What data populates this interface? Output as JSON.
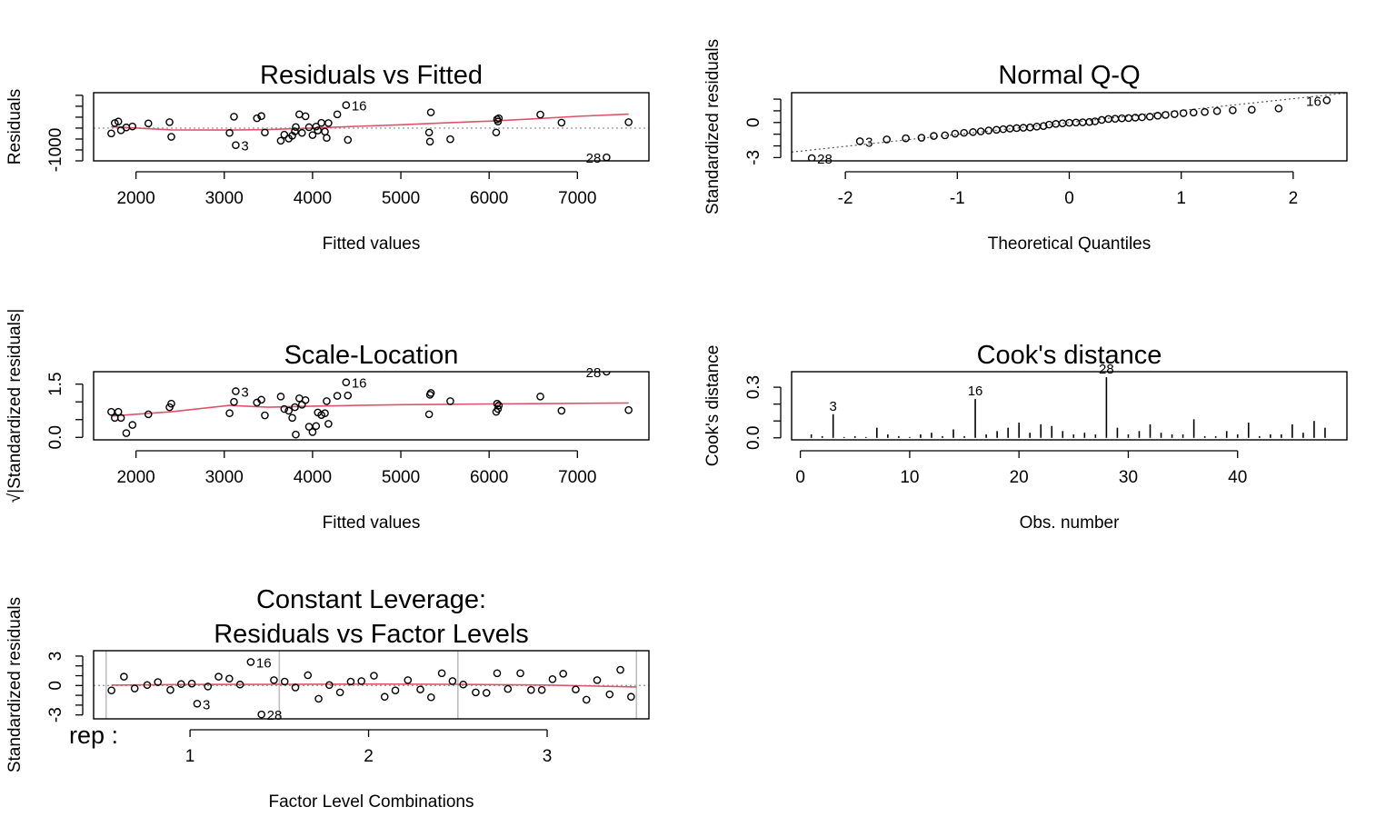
{
  "colors": {
    "frame": "#000000",
    "smooth": "#DF536B",
    "reference": "#9E9E9E",
    "lines": "#000000"
  },
  "chart_data": [
    {
      "type": "scatter",
      "title": "Residuals vs Fitted",
      "xlabel": "Fitted values",
      "ylabel": "Residuals",
      "xlim": [
        1520,
        7810
      ],
      "ylim": [
        -1500,
        1620
      ],
      "xticks": [
        2000,
        3000,
        4000,
        5000,
        6000,
        7000
      ],
      "yticks": [
        -1000
      ],
      "yminor": [
        -1500,
        -1000,
        -500,
        0,
        500,
        1000,
        1500
      ],
      "reference": {
        "kind": "hline",
        "y": 0,
        "style": "dotted"
      },
      "points": [
        [
          1720,
          -245
        ],
        [
          1760,
          230
        ],
        [
          1800,
          300
        ],
        [
          1830,
          -100
        ],
        [
          1890,
          30
        ],
        [
          1960,
          75
        ],
        [
          2140,
          215
        ],
        [
          2380,
          270
        ],
        [
          2400,
          -400
        ],
        [
          3060,
          -220
        ],
        [
          3110,
          520
        ],
        [
          3130,
          -780
        ],
        [
          3370,
          450
        ],
        [
          3420,
          550
        ],
        [
          3460,
          -200
        ],
        [
          3640,
          -580
        ],
        [
          3680,
          -300
        ],
        [
          3730,
          -480
        ],
        [
          3770,
          -350
        ],
        [
          3800,
          -150
        ],
        [
          3810,
          50
        ],
        [
          3850,
          630
        ],
        [
          3880,
          -220
        ],
        [
          3920,
          540
        ],
        [
          3960,
          40
        ],
        [
          4000,
          -320
        ],
        [
          4040,
          70
        ],
        [
          4060,
          -110
        ],
        [
          4100,
          240
        ],
        [
          4140,
          -160
        ],
        [
          4160,
          -450
        ],
        [
          4180,
          230
        ],
        [
          4280,
          630
        ],
        [
          4380,
          1050
        ],
        [
          4400,
          -540
        ],
        [
          5320,
          -200
        ],
        [
          5330,
          -620
        ],
        [
          5340,
          720
        ],
        [
          5560,
          -510
        ],
        [
          6080,
          -200
        ],
        [
          6090,
          400
        ],
        [
          6100,
          300
        ],
        [
          6110,
          450
        ],
        [
          6580,
          620
        ],
        [
          6820,
          250
        ],
        [
          7330,
          -1340
        ],
        [
          7580,
          270
        ]
      ],
      "labeled": [
        {
          "label": "16",
          "x": 4380,
          "y": 1050
        },
        {
          "label": "3",
          "x": 3130,
          "y": -780
        },
        {
          "label": "28",
          "x": 7330,
          "y": -1340
        }
      ],
      "smooth": [
        [
          1720,
          60
        ],
        [
          2400,
          -80
        ],
        [
          3060,
          -90
        ],
        [
          3500,
          -70
        ],
        [
          4000,
          0
        ],
        [
          4500,
          80
        ],
        [
          5000,
          150
        ],
        [
          5500,
          240
        ],
        [
          6000,
          320
        ],
        [
          6500,
          420
        ],
        [
          7000,
          540
        ],
        [
          7580,
          640
        ]
      ]
    },
    {
      "type": "scatter",
      "title": "Normal Q-Q",
      "xlabel": "Theoretical Quantiles",
      "ylabel": "Standardized residuals",
      "xlim": [
        -2.48,
        2.48
      ],
      "ylim": [
        -3.28,
        2.55
      ],
      "xticks": [
        -2,
        -1,
        0,
        1,
        2
      ],
      "yticks": [
        -3,
        0
      ],
      "yminor": [
        -3,
        -2,
        -1,
        0,
        1,
        2
      ],
      "reference": {
        "kind": "line",
        "intercept": 0,
        "slope": 1.02,
        "style": "dotted"
      },
      "points": [
        [
          -2.3,
          -3.05
        ],
        [
          -1.87,
          -1.6
        ],
        [
          -1.63,
          -1.45
        ],
        [
          -1.46,
          -1.35
        ],
        [
          -1.32,
          -1.3
        ],
        [
          -1.21,
          -1.15
        ],
        [
          -1.11,
          -1.1
        ],
        [
          -1.02,
          -0.95
        ],
        [
          -0.94,
          -0.88
        ],
        [
          -0.86,
          -0.82
        ],
        [
          -0.79,
          -0.76
        ],
        [
          -0.72,
          -0.68
        ],
        [
          -0.65,
          -0.62
        ],
        [
          -0.59,
          -0.57
        ],
        [
          -0.53,
          -0.52
        ],
        [
          -0.47,
          -0.48
        ],
        [
          -0.41,
          -0.45
        ],
        [
          -0.35,
          -0.42
        ],
        [
          -0.29,
          -0.35
        ],
        [
          -0.23,
          -0.3
        ],
        [
          -0.18,
          -0.18
        ],
        [
          -0.12,
          -0.12
        ],
        [
          -0.06,
          -0.07
        ],
        [
          0.0,
          -0.02
        ],
        [
          0.06,
          0.0
        ],
        [
          0.12,
          0.02
        ],
        [
          0.18,
          0.05
        ],
        [
          0.23,
          0.1
        ],
        [
          0.29,
          0.22
        ],
        [
          0.35,
          0.3
        ],
        [
          0.41,
          0.32
        ],
        [
          0.47,
          0.36
        ],
        [
          0.53,
          0.38
        ],
        [
          0.59,
          0.42
        ],
        [
          0.65,
          0.45
        ],
        [
          0.72,
          0.5
        ],
        [
          0.79,
          0.58
        ],
        [
          0.86,
          0.65
        ],
        [
          0.94,
          0.72
        ],
        [
          1.02,
          0.8
        ],
        [
          1.11,
          0.85
        ],
        [
          1.21,
          0.9
        ],
        [
          1.32,
          0.98
        ],
        [
          1.46,
          1.05
        ],
        [
          1.63,
          1.1
        ],
        [
          1.87,
          1.2
        ],
        [
          2.3,
          1.9
        ]
      ],
      "labeled": [
        {
          "label": "16",
          "x": 2.3,
          "y": 1.9
        },
        {
          "label": "3",
          "x": -1.87,
          "y": -1.6
        },
        {
          "label": "28",
          "x": -2.3,
          "y": -3.05
        }
      ]
    },
    {
      "type": "scatter",
      "title": "Scale-Location",
      "xlabel": "Fitted values",
      "ylabel": "√|Standardized residuals|",
      "xlim": [
        1520,
        7810
      ],
      "ylim": [
        -0.07,
        1.85
      ],
      "xticks": [
        2000,
        3000,
        4000,
        5000,
        6000,
        7000
      ],
      "yticks": [
        0.0,
        1.5
      ],
      "ytick_labels": [
        "0.0",
        "1.5"
      ],
      "yminor": [
        0.0,
        0.5,
        1.0,
        1.5
      ],
      "points": [
        [
          1720,
          0.72
        ],
        [
          1760,
          0.55
        ],
        [
          1800,
          0.72
        ],
        [
          1830,
          0.55
        ],
        [
          1890,
          0.12
        ],
        [
          1960,
          0.35
        ],
        [
          2140,
          0.65
        ],
        [
          2380,
          0.85
        ],
        [
          2400,
          0.95
        ],
        [
          3060,
          0.68
        ],
        [
          3110,
          1.0
        ],
        [
          3130,
          1.3
        ],
        [
          3370,
          0.98
        ],
        [
          3420,
          1.06
        ],
        [
          3460,
          0.62
        ],
        [
          3640,
          1.15
        ],
        [
          3680,
          0.8
        ],
        [
          3730,
          0.75
        ],
        [
          3770,
          0.55
        ],
        [
          3800,
          0.85
        ],
        [
          3810,
          0.08
        ],
        [
          3850,
          1.1
        ],
        [
          3880,
          0.92
        ],
        [
          3920,
          1.05
        ],
        [
          3960,
          0.3
        ],
        [
          4000,
          0.15
        ],
        [
          4040,
          0.32
        ],
        [
          4060,
          0.7
        ],
        [
          4100,
          0.63
        ],
        [
          4140,
          0.68
        ],
        [
          4160,
          1.02
        ],
        [
          4180,
          0.38
        ],
        [
          4280,
          1.17
        ],
        [
          4380,
          1.55
        ],
        [
          4400,
          1.18
        ],
        [
          5320,
          0.65
        ],
        [
          5330,
          1.2
        ],
        [
          5340,
          1.25
        ],
        [
          5560,
          1.02
        ],
        [
          6080,
          0.72
        ],
        [
          6090,
          0.95
        ],
        [
          6100,
          0.8
        ],
        [
          6110,
          0.9
        ],
        [
          6580,
          1.15
        ],
        [
          6820,
          0.75
        ],
        [
          7330,
          1.85
        ],
        [
          7580,
          0.77
        ]
      ],
      "labeled": [
        {
          "label": "16",
          "x": 4380,
          "y": 1.55
        },
        {
          "label": "3",
          "x": 3130,
          "y": 1.3
        },
        {
          "label": "28",
          "x": 7330,
          "y": 1.85
        }
      ],
      "smooth": [
        [
          1720,
          0.6
        ],
        [
          2400,
          0.72
        ],
        [
          3060,
          0.9
        ],
        [
          3500,
          0.85
        ],
        [
          4000,
          0.88
        ],
        [
          4500,
          0.9
        ],
        [
          5000,
          0.92
        ],
        [
          5500,
          0.93
        ],
        [
          6000,
          0.94
        ],
        [
          6500,
          0.95
        ],
        [
          7000,
          0.96
        ],
        [
          7580,
          0.97
        ]
      ]
    },
    {
      "type": "bar",
      "title": "Cook's distance",
      "xlabel": "Obs. number",
      "ylabel": "Cook's distance",
      "xlim": [
        -0.8,
        50.0
      ],
      "ylim": [
        -0.012,
        0.392
      ],
      "xticks": [
        0,
        10,
        20,
        30,
        40
      ],
      "yticks": [
        0.0,
        0.3
      ],
      "ytick_labels": [
        "0.0",
        "0.3"
      ],
      "yminor": [
        0.0,
        0.1,
        0.2,
        0.3
      ],
      "x": [
        1,
        2,
        3,
        4,
        5,
        6,
        7,
        8,
        9,
        10,
        11,
        12,
        13,
        14,
        15,
        16,
        17,
        18,
        19,
        20,
        21,
        22,
        23,
        24,
        25,
        26,
        27,
        28,
        29,
        30,
        31,
        32,
        33,
        34,
        35,
        36,
        37,
        38,
        39,
        40,
        41,
        42,
        43,
        44,
        45,
        46,
        47,
        48
      ],
      "values": [
        0.02,
        0.01,
        0.14,
        0.005,
        0.01,
        0.005,
        0.06,
        0.02,
        0.01,
        0.005,
        0.02,
        0.03,
        0.01,
        0.05,
        0.01,
        0.23,
        0.02,
        0.04,
        0.06,
        0.09,
        0.03,
        0.08,
        0.07,
        0.04,
        0.02,
        0.03,
        0.02,
        0.36,
        0.06,
        0.02,
        0.04,
        0.08,
        0.03,
        0.02,
        0.02,
        0.11,
        0.01,
        0.01,
        0.04,
        0.02,
        0.09,
        0.01,
        0.02,
        0.02,
        0.08,
        0.03,
        0.1,
        0.06
      ],
      "labeled": [
        {
          "label": "3",
          "x": 3,
          "y": 0.14
        },
        {
          "label": "16",
          "x": 16,
          "y": 0.23
        },
        {
          "label": "28",
          "x": 28,
          "y": 0.36
        }
      ]
    },
    {
      "type": "scatter",
      "title": [
        "Constant Leverage:",
        "Residuals vs Factor Levels"
      ],
      "xlabel": "Factor Level Combinations",
      "ylabel": "Standardized residuals",
      "corner_label": "rep :",
      "xlim": [
        0.46,
        3.57
      ],
      "ylim": [
        -3.4,
        3.55
      ],
      "xticks": [
        1,
        2,
        3
      ],
      "yticks": [
        -3,
        0,
        3
      ],
      "yminor": [
        -3,
        -2,
        -1,
        0,
        1,
        2,
        3
      ],
      "separators": [
        0.53,
        1.5,
        2.5,
        3.5
      ],
      "reference": {
        "kind": "hline",
        "y": 0,
        "style": "dotted"
      },
      "points": [
        [
          0.56,
          -0.5
        ],
        [
          0.63,
          0.9
        ],
        [
          0.69,
          -0.3
        ],
        [
          0.76,
          0.05
        ],
        [
          0.82,
          0.35
        ],
        [
          0.89,
          -0.45
        ],
        [
          0.95,
          0.15
        ],
        [
          1.01,
          0.2
        ],
        [
          1.04,
          -1.85
        ],
        [
          1.1,
          -0.1
        ],
        [
          1.16,
          0.9
        ],
        [
          1.22,
          0.7
        ],
        [
          1.28,
          0.1
        ],
        [
          1.34,
          2.4
        ],
        [
          1.4,
          -2.95
        ],
        [
          1.47,
          0.55
        ],
        [
          1.53,
          0.4
        ],
        [
          1.59,
          -0.2
        ],
        [
          1.66,
          1.05
        ],
        [
          1.72,
          -1.35
        ],
        [
          1.78,
          0.05
        ],
        [
          1.84,
          -0.7
        ],
        [
          1.9,
          0.4
        ],
        [
          1.96,
          0.45
        ],
        [
          2.03,
          1.0
        ],
        [
          2.09,
          -1.15
        ],
        [
          2.15,
          -0.5
        ],
        [
          2.22,
          0.55
        ],
        [
          2.29,
          -0.4
        ],
        [
          2.35,
          -1.2
        ],
        [
          2.41,
          1.25
        ],
        [
          2.47,
          0.45
        ],
        [
          2.53,
          0.1
        ],
        [
          2.6,
          -0.7
        ],
        [
          2.66,
          -0.75
        ],
        [
          2.72,
          1.25
        ],
        [
          2.78,
          -0.35
        ],
        [
          2.85,
          1.25
        ],
        [
          2.91,
          -0.45
        ],
        [
          2.97,
          -0.45
        ],
        [
          3.03,
          0.65
        ],
        [
          3.09,
          1.2
        ],
        [
          3.16,
          -0.4
        ],
        [
          3.22,
          -1.45
        ],
        [
          3.28,
          0.55
        ],
        [
          3.35,
          -0.9
        ],
        [
          3.41,
          1.6
        ],
        [
          3.47,
          -1.15
        ]
      ],
      "labeled": [
        {
          "label": "16",
          "x": 1.34,
          "y": 2.4
        },
        {
          "label": "3",
          "x": 1.04,
          "y": -1.85
        },
        {
          "label": "28",
          "x": 1.4,
          "y": -2.95
        }
      ],
      "smooth": [
        [
          0.56,
          0.05
        ],
        [
          1.0,
          0.1
        ],
        [
          1.5,
          0.12
        ],
        [
          2.0,
          0.15
        ],
        [
          2.5,
          0.12
        ],
        [
          3.0,
          0.05
        ],
        [
          3.5,
          -0.15
        ]
      ]
    }
  ]
}
